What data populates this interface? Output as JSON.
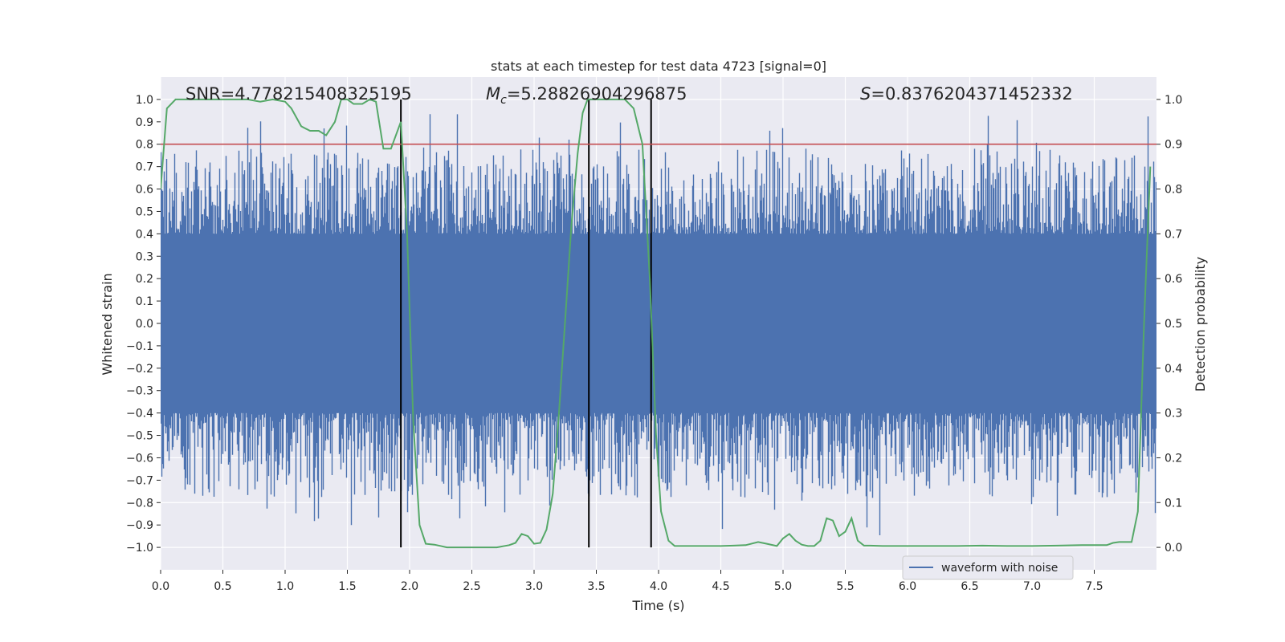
{
  "chart_data": {
    "type": "line",
    "title": "stats at each timestep for test data 4723 [signal=0]",
    "xlabel": "Time (s)",
    "ylabel": "Whitened strain",
    "y2label": "Detection probability",
    "xlim": [
      0.0,
      8.0
    ],
    "ylim": [
      -1.1,
      1.1
    ],
    "y2lim": [
      -0.05,
      1.05
    ],
    "x_ticks": [
      0.0,
      0.5,
      1.0,
      1.5,
      2.0,
      2.5,
      3.0,
      3.5,
      4.0,
      4.5,
      5.0,
      5.5,
      6.0,
      6.5,
      7.0,
      7.5
    ],
    "y_ticks": [
      -1.0,
      -0.9,
      -0.8,
      -0.7,
      -0.6,
      -0.5,
      -0.4,
      -0.3,
      -0.2,
      -0.1,
      0.0,
      0.1,
      0.2,
      0.3,
      0.4,
      0.5,
      0.6,
      0.7,
      0.8,
      0.9,
      1.0
    ],
    "y2_ticks": [
      0.0,
      0.1,
      0.2,
      0.3,
      0.4,
      0.5,
      0.6,
      0.7,
      0.8,
      0.9,
      1.0
    ],
    "grid": true,
    "legend": {
      "position": "bottom-right",
      "entries": [
        "waveform with noise"
      ]
    },
    "annotations": {
      "snr": "SNR=4.778215408325195",
      "mc_symbol": "M",
      "mc_sub": "c",
      "mc_value": "=5.28826904296875",
      "s_symbol": "S",
      "s_value": "=0.8376204371452332"
    },
    "threshold": {
      "y2": 0.9,
      "color": "#c44e52"
    },
    "vertical_lines": [
      1.93,
      3.44,
      3.94
    ],
    "waveform": {
      "name": "waveform with noise",
      "color": "#4c72b0",
      "band": 0.4,
      "extreme": 1.0
    },
    "probability": {
      "color": "#55a868",
      "x": [
        0.0,
        0.05,
        0.12,
        0.2,
        0.3,
        0.4,
        0.5,
        0.6,
        0.7,
        0.8,
        0.9,
        1.0,
        1.05,
        1.13,
        1.2,
        1.27,
        1.33,
        1.4,
        1.45,
        1.5,
        1.55,
        1.62,
        1.68,
        1.73,
        1.79,
        1.85,
        1.93,
        1.98,
        2.03,
        2.08,
        2.13,
        2.2,
        2.3,
        2.45,
        2.6,
        2.7,
        2.8,
        2.85,
        2.9,
        2.95,
        3.0,
        3.05,
        3.1,
        3.15,
        3.2,
        3.26,
        3.3,
        3.35,
        3.39,
        3.43,
        3.47,
        3.52,
        3.58,
        3.65,
        3.73,
        3.8,
        3.87,
        3.93,
        3.98,
        4.02,
        4.08,
        4.13,
        4.18,
        4.22,
        4.3,
        4.4,
        4.5,
        4.6,
        4.7,
        4.8,
        4.87,
        4.95,
        5.0,
        5.05,
        5.1,
        5.15,
        5.2,
        5.25,
        5.3,
        5.35,
        5.4,
        5.45,
        5.5,
        5.55,
        5.6,
        5.65,
        5.7,
        5.8,
        6.0,
        6.2,
        6.4,
        6.6,
        6.8,
        7.0,
        7.2,
        7.4,
        7.5,
        7.6,
        7.65,
        7.7,
        7.75,
        7.8,
        7.85,
        7.9,
        7.95
      ],
      "y": [
        0.8,
        0.98,
        1.0,
        1.0,
        1.0,
        1.0,
        1.0,
        1.0,
        1.0,
        0.995,
        1.0,
        0.995,
        0.98,
        0.94,
        0.93,
        0.93,
        0.92,
        0.95,
        1.0,
        1.0,
        0.99,
        0.99,
        1.0,
        0.995,
        0.89,
        0.89,
        0.95,
        0.7,
        0.28,
        0.05,
        0.008,
        0.006,
        0.0,
        0.0,
        0.0,
        0.0,
        0.005,
        0.01,
        0.03,
        0.025,
        0.008,
        0.01,
        0.04,
        0.12,
        0.3,
        0.55,
        0.72,
        0.88,
        0.97,
        1.0,
        1.0,
        1.0,
        1.0,
        1.0,
        1.0,
        0.98,
        0.9,
        0.6,
        0.25,
        0.08,
        0.015,
        0.003,
        0.003,
        0.003,
        0.003,
        0.003,
        0.003,
        0.004,
        0.005,
        0.012,
        0.008,
        0.003,
        0.02,
        0.03,
        0.015,
        0.006,
        0.003,
        0.003,
        0.015,
        0.065,
        0.06,
        0.025,
        0.035,
        0.065,
        0.015,
        0.004,
        0.004,
        0.003,
        0.003,
        0.003,
        0.003,
        0.004,
        0.003,
        0.003,
        0.004,
        0.005,
        0.005,
        0.005,
        0.01,
        0.012,
        0.012,
        0.012,
        0.08,
        0.5,
        0.85
      ]
    }
  }
}
